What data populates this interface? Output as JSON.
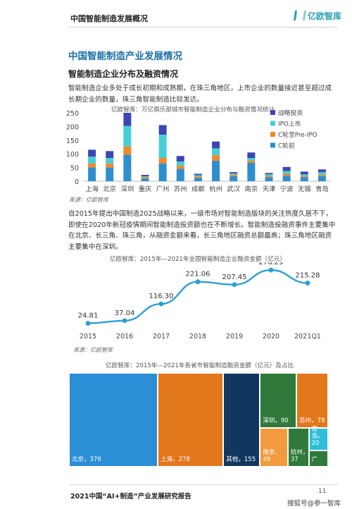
{
  "header": {
    "title": "中国智能制造发展概况",
    "logo_text": "亿欧智库"
  },
  "section": {
    "title": "中国智能制造产业发展情况",
    "subtitle": "智能制造企业分布及融资情况"
  },
  "paragraph1": "智能制造企业多处于成长初期和成熟期，在珠三角地区，上市企业的数量接近甚至超过成长期企业的数量，珠三角智能制造比较发达。",
  "paragraph2": "自2015年提出中国制造2025战略以来，一级市场对智能制造版块的关注热度久居不下，即使在2020年新冠疫情期间智能制造投资额也在不断增长。智能制造投融资事件主要集中在北京、长三角、珠三角，从融资金额来看，长三角地区融资总额最高；珠三角地区融资主要集中在深圳。",
  "source_label": "来源：亿欧智库",
  "colors": {
    "strategic": "#3b46b5",
    "ipo": "#46cfd5",
    "pre_ipo": "#f0892a",
    "c_pre": "#2f8fce",
    "line": "#2a9fd6"
  },
  "chart_data": [
    {
      "type": "bar",
      "title": "亿欧智库：万亿俱乐部城市智能制造企业分布与融资情况统计",
      "categories": [
        "上海",
        "北京",
        "深圳",
        "重庆",
        "广州",
        "苏州",
        "成都",
        "杭州",
        "武汉",
        "南京",
        "天津",
        "宁波",
        "无锡",
        "青岛"
      ],
      "series": [
        {
          "name": "C轮前",
          "values": [
            50,
            50,
            97,
            10,
            65,
            45,
            12,
            75,
            18,
            67,
            15,
            20,
            15,
            18
          ]
        },
        {
          "name": "C轮至Pre-IPO",
          "values": [
            15,
            15,
            30,
            5,
            20,
            12,
            5,
            20,
            5,
            8,
            5,
            7,
            5,
            5
          ]
        },
        {
          "name": "IPO上市",
          "values": [
            25,
            20,
            75,
            3,
            85,
            15,
            5,
            25,
            5,
            10,
            5,
            10,
            5,
            10
          ]
        },
        {
          "name": "战略投资",
          "values": [
            25,
            25,
            48,
            5,
            35,
            20,
            5,
            25,
            5,
            20,
            5,
            15,
            10,
            10
          ]
        }
      ],
      "yticks": [
        0,
        50,
        100,
        150,
        200,
        250
      ],
      "ylim": [
        0,
        250
      ],
      "legend_order": [
        "战略投资",
        "IPO上市",
        "C轮至Pre-IPO",
        "C轮前"
      ]
    },
    {
      "type": "line",
      "title": "亿欧智库：2015年—2021年全国智能制造企业融资金额（亿元）",
      "categories": [
        "2015",
        "2016",
        "2017",
        "2018",
        "2019",
        "2020",
        "2021Q1"
      ],
      "values": [
        24.81,
        37.04,
        116.3,
        221.06,
        207.45,
        276.29,
        215.28
      ],
      "value_labels": [
        "24.81",
        "37.04",
        "116.30",
        "221.06",
        "207.45",
        "276.29",
        "215.28"
      ]
    },
    {
      "type": "treemap",
      "title": "亿欧智库：2015年—2021年各省市智能制造融资金额（亿元）及占比",
      "items": [
        {
          "label": "北京，376",
          "value": 376,
          "color": "#2b8fd6"
        },
        {
          "label": "上海，278",
          "value": 278,
          "color": "#e2771c"
        },
        {
          "label": "其他，155",
          "value": 155,
          "color": "#12375e"
        },
        {
          "label": "深圳，90",
          "value": 90,
          "color": "#2f7a3a"
        },
        {
          "label": "苏州，78",
          "value": 78,
          "color": "#e2771c"
        },
        {
          "label": "南京，49",
          "value": 49,
          "color": "#f29a3d"
        },
        {
          "label": "杭州，37",
          "value": 37,
          "color": "#2f7a3a"
        },
        {
          "label": "青岛，20",
          "value": 20,
          "color": "#2fbfd6"
        },
        {
          "label": "广",
          "value": 14,
          "color": "#2f7a3a"
        }
      ]
    }
  ],
  "footer": {
    "report": "2021中国“AI+制造”产业发展研究报告",
    "page": "11",
    "watermark": "搜狐号@参一智库"
  }
}
